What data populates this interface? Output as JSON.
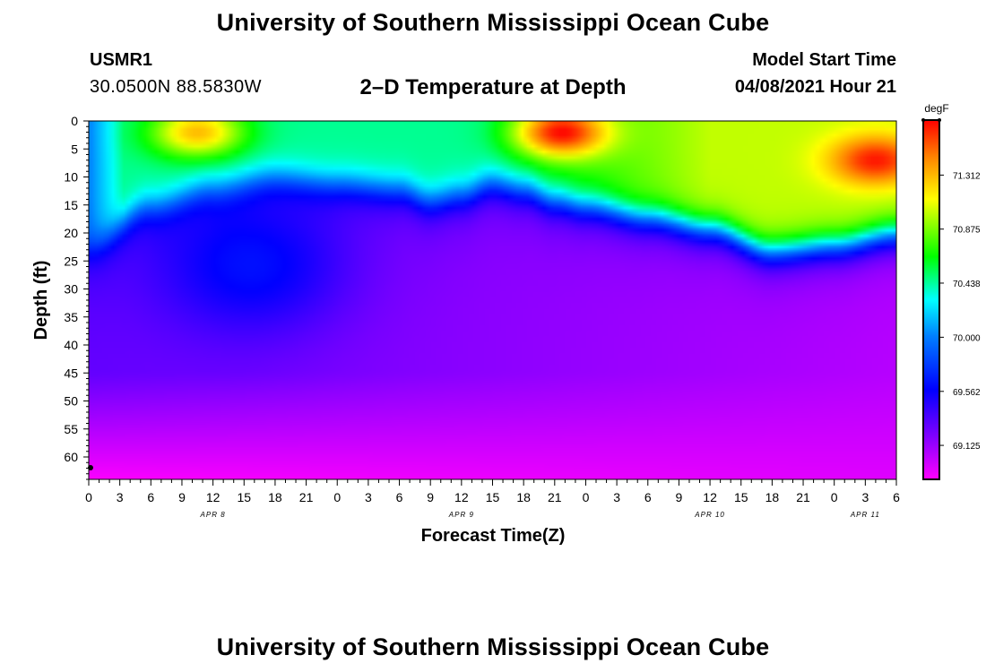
{
  "header": {
    "title": "University of Southern Mississippi Ocean Cube",
    "station_id": "USMR1",
    "station_coords": "30.0500N  88.5830W",
    "plot_title": "2–D Temperature at Depth",
    "start_time_label": "Model Start Time",
    "start_time_value": "04/08/2021 Hour 21"
  },
  "footer": {
    "title": "University of Southern Mississippi Ocean Cube"
  },
  "colors": {
    "background": "#ffffff",
    "axis": "#000000",
    "palette": [
      "#ff00ff",
      "#8000ff",
      "#0000ff",
      "#0080ff",
      "#00ffff",
      "#00ff00",
      "#ffff00",
      "#ff8000",
      "#ff0000"
    ]
  },
  "chart_data": {
    "type": "heatmap",
    "ylabel": "Depth (ft)",
    "xlabel": "Forecast Time(Z)",
    "colorbar_unit": "degF",
    "colorbar_ticks": [
      71.312,
      70.875,
      70.438,
      70.0,
      69.562,
      69.125
    ],
    "colorbar_tick_labels": [
      "71.312",
      "70.875",
      "70.438",
      "70.000",
      "69.562",
      "69.125"
    ],
    "colorbar_range": [
      68.85,
      71.75
    ],
    "y_range": [
      0,
      64
    ],
    "y_ticks": [
      0,
      5,
      10,
      15,
      20,
      25,
      30,
      35,
      40,
      45,
      50,
      55,
      60
    ],
    "y_tick_labels": [
      "0",
      "5",
      "10",
      "15",
      "20",
      "25",
      "30",
      "35",
      "40",
      "45",
      "50",
      "55",
      "60"
    ],
    "x_range_hours": [
      0,
      78
    ],
    "x_tick_labels": [
      "0",
      "3",
      "6",
      "9",
      "12",
      "15",
      "18",
      "21",
      "0",
      "3",
      "6",
      "9",
      "12",
      "15",
      "18",
      "21",
      "0",
      "3",
      "6",
      "9",
      "12",
      "15",
      "18",
      "21",
      "0",
      "3",
      "6"
    ],
    "date_labels": [
      {
        "label": "APR 8",
        "hour": 12
      },
      {
        "label": "APR 9",
        "hour": 36
      },
      {
        "label": "APR 10",
        "hour": 60
      },
      {
        "label": "APR 11",
        "hour": 75
      }
    ],
    "surface_layer_depth_ft": [
      {
        "hour": 0,
        "depth": 22
      },
      {
        "hour": 6,
        "depth": 15
      },
      {
        "hour": 12,
        "depth": 12
      },
      {
        "hour": 18,
        "depth": 10
      },
      {
        "hour": 24,
        "depth": 11
      },
      {
        "hour": 30,
        "depth": 12
      },
      {
        "hour": 33,
        "depth": 14
      },
      {
        "hour": 36,
        "depth": 13
      },
      {
        "hour": 39,
        "depth": 11
      },
      {
        "hour": 42,
        "depth": 12
      },
      {
        "hour": 45,
        "depth": 14
      },
      {
        "hour": 48,
        "depth": 15
      },
      {
        "hour": 54,
        "depth": 17
      },
      {
        "hour": 60,
        "depth": 19
      },
      {
        "hour": 66,
        "depth": 23
      },
      {
        "hour": 72,
        "depth": 22
      },
      {
        "hour": 78,
        "depth": 20
      }
    ],
    "warm_cores": [
      {
        "hour_center": 10.5,
        "depth_center": 2,
        "peak_degF": 71.45
      },
      {
        "hour_center": 45.5,
        "depth_center": 2,
        "peak_degF": 71.7
      },
      {
        "hour_center": 76,
        "depth_center": 7,
        "peak_degF": 71.3
      }
    ],
    "cold_core": {
      "hour_range": [
        8,
        24
      ],
      "depth_range": [
        15,
        40
      ],
      "min_degF": 69.55
    },
    "bottom_min_degF": 68.9
  }
}
